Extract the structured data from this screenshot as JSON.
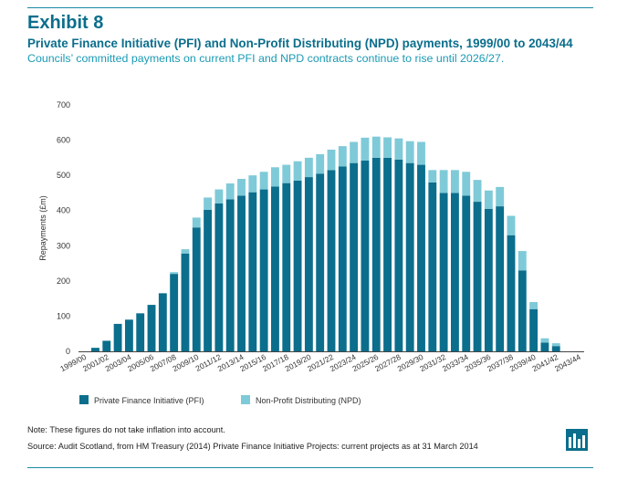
{
  "header": {
    "exhibit": "Exhibit 8",
    "title": "Private Finance Initiative (PFI) and Non-Profit Distributing (NPD) payments, 1999/00 to 2043/44",
    "subtitle": "Councils’ committed payments on current PFI and NPD contracts continue to rise until 2026/27."
  },
  "footer": {
    "note": "Note: These figures do not take inflation into account.",
    "source": "Source: Audit Scotland, from HM Treasury (2014) Private Finance Initiative Projects: current projects as at 31 March 2014"
  },
  "colors": {
    "pfi": "#0b6e8c",
    "npd": "#7fcad8",
    "axis": "#444444",
    "rule": "#1a8aa3"
  },
  "logo_icon": "audit-scotland-logo-icon",
  "chart_data": {
    "type": "bar",
    "stacked": true,
    "title": "",
    "xlabel": "",
    "ylabel": "Repayments (£m)",
    "ylim": [
      0,
      700
    ],
    "yticks": [
      0,
      100,
      200,
      300,
      400,
      500,
      600,
      700
    ],
    "grid": false,
    "legend_position": "bottom-left",
    "categories": [
      "1999/00",
      "2000/01",
      "2001/02",
      "2002/03",
      "2003/04",
      "2004/05",
      "2005/06",
      "2006/07",
      "2007/08",
      "2008/09",
      "2009/10",
      "2010/11",
      "2011/12",
      "2012/13",
      "2013/14",
      "2014/15",
      "2015/16",
      "2016/17",
      "2017/18",
      "2018/19",
      "2019/20",
      "2020/21",
      "2021/22",
      "2022/23",
      "2023/24",
      "2024/25",
      "2025/26",
      "2026/27",
      "2027/28",
      "2028/29",
      "2029/30",
      "2030/31",
      "2031/32",
      "2032/33",
      "2033/34",
      "2034/35",
      "2035/36",
      "2036/37",
      "2037/38",
      "2038/39",
      "2039/40",
      "2040/41",
      "2041/42",
      "2042/43",
      "2043/44"
    ],
    "tick_labels": [
      "1999/00",
      "2001/02",
      "2003/04",
      "2005/06",
      "2007/08",
      "2009/10",
      "2011/12",
      "2013/14",
      "2015/16",
      "2017/18",
      "2019/20",
      "2021/22",
      "2023/24",
      "2025/26",
      "2027/28",
      "2029/30",
      "2031/32",
      "2033/34",
      "2035/36",
      "2037/38",
      "2039/40",
      "2041/42",
      "2043/44"
    ],
    "series": [
      {
        "name": "Private Finance Initiative (PFI)",
        "values": [
          0,
          10,
          30,
          78,
          90,
          108,
          132,
          165,
          220,
          278,
          352,
          402,
          420,
          432,
          442,
          452,
          460,
          468,
          478,
          485,
          495,
          505,
          515,
          525,
          535,
          542,
          550,
          550,
          545,
          535,
          530,
          480,
          450,
          450,
          442,
          425,
          405,
          412,
          330,
          230,
          120,
          25,
          15,
          0,
          0
        ]
      },
      {
        "name": "Non-Profit Distributing (NPD)",
        "values": [
          0,
          0,
          0,
          0,
          0,
          0,
          0,
          0,
          5,
          12,
          28,
          35,
          40,
          45,
          48,
          48,
          50,
          55,
          52,
          55,
          55,
          55,
          58,
          58,
          60,
          65,
          60,
          58,
          60,
          62,
          65,
          35,
          65,
          65,
          68,
          62,
          52,
          55,
          55,
          55,
          20,
          12,
          8,
          0,
          0
        ]
      }
    ]
  }
}
